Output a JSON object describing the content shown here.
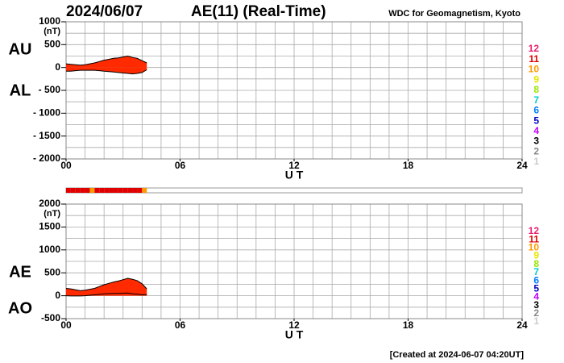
{
  "header": {
    "date": "2024/06/07",
    "title": "AE(11) (Real-Time)",
    "source": "WDC for Geomagnetism, Kyoto"
  },
  "footer": "[Created at 2024-06-07 04:20UT]",
  "station_legend": [
    {
      "count": 12,
      "color": "#e8206e"
    },
    {
      "count": 11,
      "color": "#e00000"
    },
    {
      "count": 10,
      "color": "#ff9900"
    },
    {
      "count": 9,
      "color": "#e6e600"
    },
    {
      "count": 8,
      "color": "#99e600"
    },
    {
      "count": 7,
      "color": "#00cccc"
    },
    {
      "count": 6,
      "color": "#0080ff"
    },
    {
      "count": 5,
      "color": "#0000c0"
    },
    {
      "count": 4,
      "color": "#c000ff"
    },
    {
      "count": 3,
      "color": "#000000"
    },
    {
      "count": 2,
      "color": "#888888"
    },
    {
      "count": 1,
      "color": "#cccccc"
    }
  ],
  "station_bar": {
    "edges": [
      0,
      0.25,
      0.5,
      0.75,
      1,
      1.25,
      1.5,
      1.75,
      2,
      2.25,
      2.5,
      2.75,
      3,
      3.25,
      3.5,
      3.75,
      4,
      4.25
    ],
    "counts": [
      11,
      11,
      11,
      11,
      11,
      10,
      11,
      11,
      11,
      11,
      11,
      11,
      11,
      11,
      11,
      11,
      10
    ]
  },
  "chart_data": [
    {
      "type": "area",
      "y_unit": "(nT)",
      "x_label": "U T",
      "x": [
        0,
        0.25,
        0.5,
        0.75,
        1,
        1.25,
        1.5,
        1.75,
        2,
        2.25,
        2.5,
        2.75,
        3,
        3.25,
        3.5,
        3.75,
        4,
        4.25
      ],
      "series": [
        {
          "name": "AU",
          "color": "#ff2a00",
          "values": [
            80,
            70,
            60,
            50,
            60,
            80,
            100,
            130,
            160,
            180,
            200,
            210,
            230,
            250,
            220,
            200,
            150,
            100
          ]
        },
        {
          "name": "AL",
          "color": "#ff2a00",
          "values": [
            -80,
            -80,
            -70,
            -60,
            -60,
            -60,
            -60,
            -70,
            -80,
            -90,
            -100,
            -110,
            -120,
            -130,
            -140,
            -130,
            -110,
            -50
          ]
        }
      ],
      "xlim": [
        0,
        24
      ],
      "xticks": [
        {
          "value": 0,
          "label": "00"
        },
        {
          "value": 6,
          "label": "06"
        },
        12,
        18,
        24
      ],
      "ylim": [
        -2000,
        1000
      ],
      "yticks": [
        1000,
        500,
        0,
        {
          "value": -500,
          "label": "- 500"
        },
        {
          "value": -1000,
          "label": "- 1000"
        },
        {
          "value": -1500,
          "label": "- 1500"
        },
        {
          "value": -2000,
          "label": "- 2000"
        }
      ],
      "xgrid": [
        1,
        2,
        3,
        4,
        5,
        6,
        7,
        8,
        9,
        10,
        11,
        12,
        13,
        14,
        15,
        16,
        17,
        18,
        19,
        20,
        21,
        22,
        23
      ],
      "ygrid": [
        750,
        500,
        250,
        0,
        -250,
        -500,
        -750,
        -1000,
        -1250,
        -1500,
        -1750
      ]
    },
    {
      "type": "area",
      "y_unit": "(nT)",
      "x_label": "U T",
      "x": [
        0,
        0.25,
        0.5,
        0.75,
        1,
        1.25,
        1.5,
        1.75,
        2,
        2.25,
        2.5,
        2.75,
        3,
        3.25,
        3.5,
        3.75,
        4,
        4.25
      ],
      "series": [
        {
          "name": "AE",
          "color": "#ff2a00",
          "values": [
            160,
            150,
            130,
            110,
            120,
            140,
            160,
            200,
            240,
            270,
            300,
            320,
            350,
            380,
            360,
            330,
            260,
            150
          ]
        },
        {
          "name": "AO",
          "color": "#000000",
          "values": [
            0,
            -5,
            -5,
            -5,
            0,
            10,
            20,
            30,
            40,
            45,
            50,
            50,
            55,
            60,
            40,
            35,
            20,
            25
          ]
        }
      ],
      "xlim": [
        0,
        24
      ],
      "xticks": [
        {
          "value": 0,
          "label": "00"
        },
        {
          "value": 6,
          "label": "06"
        },
        12,
        18,
        24
      ],
      "ylim": [
        -500,
        2000
      ],
      "yticks": [
        2000,
        1500,
        1000,
        500,
        0,
        {
          "value": -500,
          "label": "-500"
        }
      ],
      "xgrid": [
        1,
        2,
        3,
        4,
        5,
        6,
        7,
        8,
        9,
        10,
        11,
        12,
        13,
        14,
        15,
        16,
        17,
        18,
        19,
        20,
        21,
        22,
        23
      ],
      "ygrid": [
        1750,
        1500,
        1250,
        1000,
        750,
        500,
        250,
        0,
        -250
      ]
    }
  ]
}
